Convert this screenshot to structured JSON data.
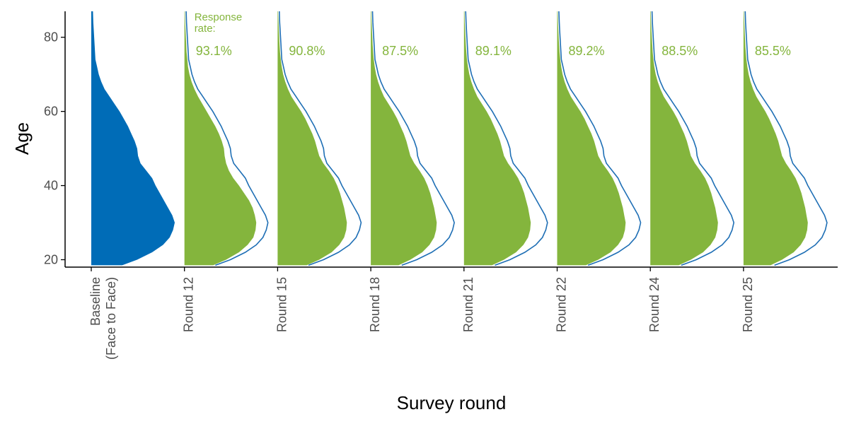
{
  "chart_data": {
    "type": "area",
    "subtype": "half-violin age distributions per survey round",
    "xlabel": "Survey round",
    "ylabel": "Age",
    "ylim": [
      18,
      87
    ],
    "yticks": [
      20,
      40,
      60,
      80
    ],
    "categories": [
      "Baseline\n(Face to Face)",
      "Round 12",
      "Round 15",
      "Round 18",
      "Round 21",
      "Round 22",
      "Round 24",
      "Round 25"
    ],
    "response_rate_title": "Response\nrate:",
    "response_rates": [
      "",
      "93.1%",
      "90.8%",
      "87.5%",
      "89.1%",
      "89.2%",
      "88.5%",
      "85.5%"
    ],
    "colors": {
      "baseline": "#006cb7",
      "respondents": "#84b53d",
      "baseline_outline": "#1f6fb5",
      "axis": "#000000"
    },
    "baseline_density": {
      "age": [
        18.5,
        20,
        22,
        24,
        26,
        28,
        30,
        32,
        34,
        36,
        38,
        40,
        42,
        44,
        46,
        48,
        50,
        52,
        54,
        56,
        58,
        60,
        62,
        64,
        66,
        68,
        70,
        72,
        74,
        76,
        78,
        80,
        82,
        84,
        87
      ],
      "density": [
        0.37,
        0.55,
        0.73,
        0.86,
        0.94,
        0.98,
        1.0,
        0.97,
        0.92,
        0.87,
        0.82,
        0.77,
        0.73,
        0.66,
        0.59,
        0.56,
        0.55,
        0.52,
        0.48,
        0.44,
        0.39,
        0.34,
        0.28,
        0.22,
        0.16,
        0.12,
        0.09,
        0.07,
        0.05,
        0.045,
        0.04,
        0.035,
        0.03,
        0.025,
        0.02
      ]
    },
    "respondent_density": [
      {
        "round": "Round 12",
        "age": [
          18.5,
          20,
          22,
          24,
          26,
          28,
          30,
          32,
          34,
          36,
          38,
          40,
          42,
          44,
          46,
          48,
          50,
          52,
          54,
          56,
          58,
          60,
          62,
          64,
          66,
          68,
          70,
          72,
          74,
          76,
          78,
          80,
          82,
          84,
          87
        ],
        "density": [
          0.4,
          0.58,
          0.76,
          0.88,
          0.96,
          0.99,
          1.0,
          0.98,
          0.95,
          0.9,
          0.83,
          0.76,
          0.68,
          0.62,
          0.58,
          0.56,
          0.55,
          0.52,
          0.48,
          0.43,
          0.37,
          0.31,
          0.25,
          0.19,
          0.14,
          0.1,
          0.07,
          0.05,
          0.04,
          0.03,
          0.025,
          0.02,
          0.015,
          0.01,
          0.005
        ]
      },
      {
        "round": "Round 15",
        "age": [
          18.5,
          20,
          22,
          24,
          26,
          28,
          30,
          32,
          34,
          36,
          38,
          40,
          42,
          44,
          46,
          48,
          50,
          52,
          54,
          56,
          58,
          60,
          62,
          64,
          66,
          68,
          70,
          72,
          74,
          76,
          78,
          80,
          82,
          84,
          87
        ],
        "density": [
          0.42,
          0.6,
          0.78,
          0.89,
          0.96,
          0.99,
          1.0,
          0.98,
          0.96,
          0.93,
          0.9,
          0.86,
          0.81,
          0.74,
          0.66,
          0.6,
          0.57,
          0.54,
          0.5,
          0.45,
          0.4,
          0.34,
          0.27,
          0.2,
          0.15,
          0.11,
          0.08,
          0.06,
          0.045,
          0.035,
          0.028,
          0.022,
          0.017,
          0.012,
          0.006
        ]
      },
      {
        "round": "Round 18",
        "age": [
          18.5,
          20,
          22,
          24,
          26,
          28,
          30,
          32,
          34,
          36,
          38,
          40,
          42,
          44,
          46,
          48,
          50,
          52,
          54,
          56,
          58,
          60,
          62,
          64,
          66,
          68,
          70,
          72,
          74,
          76,
          78,
          80,
          82,
          84,
          87
        ],
        "density": [
          0.42,
          0.6,
          0.78,
          0.89,
          0.96,
          0.99,
          1.0,
          0.98,
          0.96,
          0.93,
          0.9,
          0.86,
          0.81,
          0.74,
          0.66,
          0.6,
          0.57,
          0.54,
          0.5,
          0.45,
          0.4,
          0.34,
          0.27,
          0.2,
          0.15,
          0.11,
          0.08,
          0.06,
          0.045,
          0.035,
          0.028,
          0.022,
          0.017,
          0.012,
          0.006
        ]
      },
      {
        "round": "Round 21",
        "age": [
          18.5,
          20,
          22,
          24,
          26,
          28,
          30,
          32,
          34,
          36,
          38,
          40,
          42,
          44,
          46,
          48,
          50,
          52,
          54,
          56,
          58,
          60,
          62,
          64,
          66,
          68,
          70,
          72,
          74,
          76,
          78,
          80,
          82,
          84,
          87
        ],
        "density": [
          0.42,
          0.6,
          0.78,
          0.89,
          0.96,
          0.99,
          1.0,
          0.98,
          0.96,
          0.93,
          0.9,
          0.86,
          0.81,
          0.74,
          0.66,
          0.6,
          0.57,
          0.54,
          0.5,
          0.45,
          0.4,
          0.34,
          0.27,
          0.2,
          0.15,
          0.11,
          0.08,
          0.06,
          0.045,
          0.035,
          0.028,
          0.022,
          0.017,
          0.012,
          0.006
        ]
      },
      {
        "round": "Round 22",
        "age": [
          18.5,
          20,
          22,
          24,
          26,
          28,
          30,
          32,
          34,
          36,
          38,
          40,
          42,
          44,
          46,
          48,
          50,
          52,
          54,
          56,
          58,
          60,
          62,
          64,
          66,
          68,
          70,
          72,
          74,
          76,
          78,
          80,
          82,
          84,
          87
        ],
        "density": [
          0.42,
          0.6,
          0.78,
          0.89,
          0.96,
          0.99,
          1.0,
          0.98,
          0.96,
          0.93,
          0.9,
          0.86,
          0.81,
          0.74,
          0.66,
          0.6,
          0.57,
          0.54,
          0.5,
          0.45,
          0.4,
          0.34,
          0.27,
          0.2,
          0.15,
          0.11,
          0.08,
          0.06,
          0.045,
          0.035,
          0.028,
          0.022,
          0.017,
          0.012,
          0.006
        ]
      },
      {
        "round": "Round 24",
        "age": [
          18.5,
          20,
          22,
          24,
          26,
          28,
          30,
          32,
          34,
          36,
          38,
          40,
          42,
          44,
          46,
          48,
          50,
          52,
          54,
          56,
          58,
          60,
          62,
          64,
          66,
          68,
          70,
          72,
          74,
          76,
          78,
          80,
          82,
          84,
          87
        ],
        "density": [
          0.42,
          0.6,
          0.78,
          0.89,
          0.96,
          0.99,
          1.0,
          0.98,
          0.96,
          0.93,
          0.9,
          0.86,
          0.81,
          0.74,
          0.66,
          0.6,
          0.57,
          0.54,
          0.5,
          0.45,
          0.4,
          0.34,
          0.27,
          0.2,
          0.15,
          0.11,
          0.08,
          0.06,
          0.045,
          0.035,
          0.028,
          0.022,
          0.017,
          0.012,
          0.006
        ]
      },
      {
        "round": "Round 25",
        "age": [
          18.5,
          20,
          22,
          24,
          26,
          28,
          30,
          32,
          34,
          36,
          38,
          40,
          42,
          44,
          46,
          48,
          50,
          52,
          54,
          56,
          58,
          60,
          62,
          64,
          66,
          68,
          70,
          72,
          74,
          76,
          78,
          80,
          82,
          84,
          87
        ],
        "density": [
          0.42,
          0.6,
          0.78,
          0.89,
          0.96,
          0.99,
          1.0,
          0.98,
          0.96,
          0.93,
          0.9,
          0.86,
          0.81,
          0.74,
          0.66,
          0.6,
          0.57,
          0.54,
          0.5,
          0.45,
          0.4,
          0.34,
          0.27,
          0.2,
          0.15,
          0.11,
          0.08,
          0.06,
          0.045,
          0.035,
          0.028,
          0.022,
          0.017,
          0.012,
          0.006
        ]
      }
    ],
    "respondent_scale": [
      0.86,
      0.83,
      0.79,
      0.8,
      0.82,
      0.81,
      0.77
    ],
    "grid": false,
    "legend": "none"
  }
}
